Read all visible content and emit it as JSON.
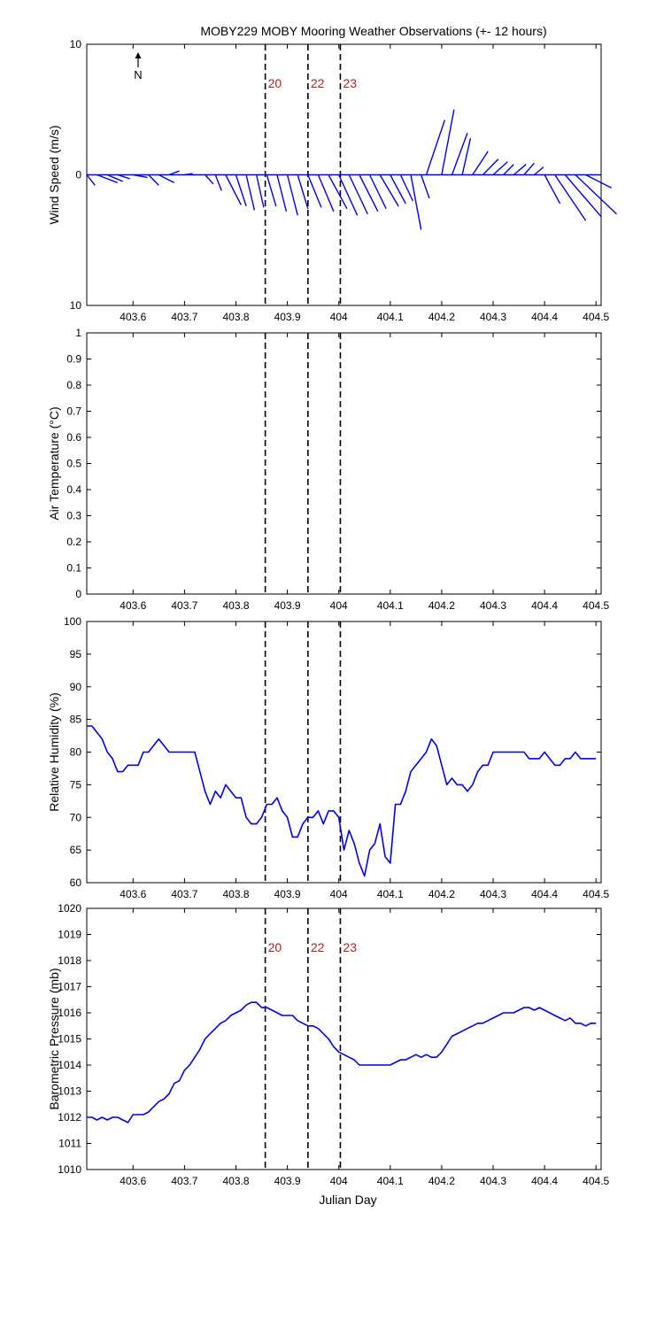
{
  "figure": {
    "title": "MOBY229 MOBY Mooring Weather Observations (+- 12 hours)",
    "xlabel": "Julian Day",
    "north_label": "N",
    "north_icon": "north-arrow-icon",
    "colors": {
      "series": "#0000ee",
      "marker_label": "#b22222",
      "axis": "#000000"
    }
  },
  "chart_data": [
    {
      "type": "line",
      "subtype": "wind-vector-stick",
      "ylabel": "Wind Speed (m/s)",
      "xlim": [
        403.51,
        404.51
      ],
      "ylim": [
        -10,
        10
      ],
      "yticks": [
        -10,
        0,
        10
      ],
      "ytick_labels": [
        "10",
        "0",
        "10"
      ],
      "xticks": [
        403.6,
        403.7,
        403.8,
        403.9,
        404,
        404.1,
        404.2,
        404.3,
        404.4,
        404.5
      ],
      "xtick_labels": [
        "403.6",
        "403.7",
        "403.8",
        "403.9",
        "404",
        "404.1",
        "404.2",
        "404.3",
        "404.4",
        "404.5"
      ],
      "markers": [
        {
          "x": 403.857,
          "label": "20"
        },
        {
          "x": 403.94,
          "label": "22"
        },
        {
          "x": 404.003,
          "label": "23"
        }
      ],
      "series": [
        {
          "vectors": [
            {
              "x": 403.51,
              "u": 0.8,
              "v": -0.8
            },
            {
              "x": 403.53,
              "u": 2.0,
              "v": -0.6
            },
            {
              "x": 403.55,
              "u": 1.5,
              "v": -0.5
            },
            {
              "x": 403.57,
              "u": 1.2,
              "v": -0.3
            },
            {
              "x": 403.6,
              "u": 1.4,
              "v": -0.2
            },
            {
              "x": 403.63,
              "u": 1.0,
              "v": -0.8
            },
            {
              "x": 403.65,
              "u": 1.5,
              "v": -0.6
            },
            {
              "x": 403.67,
              "u": 1.0,
              "v": 0.3
            },
            {
              "x": 403.7,
              "u": 0.8,
              "v": 0.1
            },
            {
              "x": 403.74,
              "u": 0.8,
              "v": -0.7
            },
            {
              "x": 403.76,
              "u": 0.6,
              "v": -1.2
            },
            {
              "x": 403.78,
              "u": 1.5,
              "v": -2.3
            },
            {
              "x": 403.8,
              "u": 1.0,
              "v": -2.4
            },
            {
              "x": 403.82,
              "u": 0.8,
              "v": -2.7
            },
            {
              "x": 403.84,
              "u": 0.7,
              "v": -2.5
            },
            {
              "x": 403.86,
              "u": 0.9,
              "v": -2.4
            },
            {
              "x": 403.88,
              "u": 0.9,
              "v": -2.8
            },
            {
              "x": 403.9,
              "u": 1.0,
              "v": -3.1
            },
            {
              "x": 403.92,
              "u": 1.0,
              "v": -2.6
            },
            {
              "x": 403.94,
              "u": 1.3,
              "v": -2.5
            },
            {
              "x": 403.96,
              "u": 1.5,
              "v": -2.8
            },
            {
              "x": 403.98,
              "u": 1.8,
              "v": -2.6
            },
            {
              "x": 404.0,
              "u": 1.8,
              "v": -3.1
            },
            {
              "x": 404.02,
              "u": 1.8,
              "v": -3.0
            },
            {
              "x": 404.04,
              "u": 1.8,
              "v": -2.8
            },
            {
              "x": 404.06,
              "u": 1.6,
              "v": -2.6
            },
            {
              "x": 404.08,
              "u": 1.8,
              "v": -2.4
            },
            {
              "x": 404.1,
              "u": 1.5,
              "v": -2.2
            },
            {
              "x": 404.12,
              "u": 1.2,
              "v": -2.0
            },
            {
              "x": 404.14,
              "u": 1.0,
              "v": -4.2
            },
            {
              "x": 404.16,
              "u": 0.8,
              "v": -1.8
            },
            {
              "x": 404.17,
              "u": 1.8,
              "v": 4.2
            },
            {
              "x": 404.2,
              "u": 1.2,
              "v": 5.0
            },
            {
              "x": 404.22,
              "u": 1.5,
              "v": 3.2
            },
            {
              "x": 404.24,
              "u": 0.8,
              "v": 2.8
            },
            {
              "x": 404.26,
              "u": 1.5,
              "v": 1.8
            },
            {
              "x": 404.28,
              "u": 1.5,
              "v": 1.2
            },
            {
              "x": 404.3,
              "u": 1.4,
              "v": 1.0
            },
            {
              "x": 404.32,
              "u": 1.0,
              "v": 0.8
            },
            {
              "x": 404.34,
              "u": 1.2,
              "v": 0.8
            },
            {
              "x": 404.36,
              "u": 1.0,
              "v": 0.9
            },
            {
              "x": 404.38,
              "u": 0.9,
              "v": 0.6
            },
            {
              "x": 404.4,
              "u": 1.5,
              "v": -2.2
            },
            {
              "x": 404.42,
              "u": 3.0,
              "v": -3.5
            },
            {
              "x": 404.44,
              "u": 3.5,
              "v": -3.2
            },
            {
              "x": 404.46,
              "u": 4.0,
              "v": -3.0
            },
            {
              "x": 404.48,
              "u": 2.5,
              "v": -1.0
            }
          ]
        }
      ]
    },
    {
      "type": "line",
      "ylabel": "Air Temperature (°C)",
      "xlim": [
        403.51,
        404.51
      ],
      "ylim": [
        0,
        1
      ],
      "yticks": [
        0,
        0.1,
        0.2,
        0.3,
        0.4,
        0.5,
        0.6,
        0.7,
        0.8,
        0.9,
        1
      ],
      "ytick_labels": [
        "0",
        "0.1",
        "0.2",
        "0.3",
        "0.4",
        "0.5",
        "0.6",
        "0.7",
        "0.8",
        "0.9",
        "1"
      ],
      "xticks": [
        403.6,
        403.7,
        403.8,
        403.9,
        404,
        404.1,
        404.2,
        404.3,
        404.4,
        404.5
      ],
      "xtick_labels": [
        "403.6",
        "403.7",
        "403.8",
        "403.9",
        "404",
        "404.1",
        "404.2",
        "404.3",
        "404.4",
        "404.5"
      ],
      "markers": [
        {
          "x": 403.857,
          "label": ""
        },
        {
          "x": 403.94,
          "label": ""
        },
        {
          "x": 404.003,
          "label": ""
        }
      ],
      "series": []
    },
    {
      "type": "line",
      "ylabel": "Relative Humidity (%)",
      "xlim": [
        403.51,
        404.51
      ],
      "ylim": [
        60,
        100
      ],
      "yticks": [
        60,
        65,
        70,
        75,
        80,
        85,
        90,
        95,
        100
      ],
      "ytick_labels": [
        "60",
        "65",
        "70",
        "75",
        "80",
        "85",
        "90",
        "95",
        "100"
      ],
      "xticks": [
        403.6,
        403.7,
        403.8,
        403.9,
        404,
        404.1,
        404.2,
        404.3,
        404.4,
        404.5
      ],
      "xtick_labels": [
        "403.6",
        "403.7",
        "403.8",
        "403.9",
        "404",
        "404.1",
        "404.2",
        "404.3",
        "404.4",
        "404.5"
      ],
      "markers": [
        {
          "x": 403.857,
          "label": ""
        },
        {
          "x": 403.94,
          "label": ""
        },
        {
          "x": 404.003,
          "label": ""
        }
      ],
      "series": [
        {
          "x": [
            403.51,
            403.52,
            403.53,
            403.54,
            403.55,
            403.56,
            403.57,
            403.58,
            403.59,
            403.6,
            403.61,
            403.62,
            403.63,
            403.64,
            403.65,
            403.66,
            403.67,
            403.68,
            403.69,
            403.7,
            403.71,
            403.72,
            403.73,
            403.74,
            403.75,
            403.76,
            403.77,
            403.78,
            403.79,
            403.8,
            403.81,
            403.82,
            403.83,
            403.84,
            403.85,
            403.86,
            403.87,
            403.88,
            403.89,
            403.9,
            403.91,
            403.92,
            403.93,
            403.94,
            403.95,
            403.96,
            403.97,
            403.98,
            403.99,
            404.0,
            404.01,
            404.02,
            404.03,
            404.04,
            404.05,
            404.06,
            404.07,
            404.08,
            404.09,
            404.1,
            404.11,
            404.12,
            404.13,
            404.14,
            404.15,
            404.16,
            404.17,
            404.18,
            404.19,
            404.2,
            404.21,
            404.22,
            404.23,
            404.24,
            404.25,
            404.26,
            404.27,
            404.28,
            404.29,
            404.3,
            404.31,
            404.32,
            404.33,
            404.34,
            404.35,
            404.36,
            404.37,
            404.38,
            404.39,
            404.4,
            404.41,
            404.42,
            404.43,
            404.44,
            404.45,
            404.46,
            404.47,
            404.48,
            404.49,
            404.5
          ],
          "values": [
            84,
            84,
            83,
            82,
            80,
            79,
            77,
            77,
            78,
            78,
            78,
            80,
            80,
            81,
            82,
            81,
            80,
            80,
            80,
            80,
            80,
            80,
            77,
            74,
            72,
            74,
            73,
            75,
            74,
            73,
            73,
            70,
            69,
            69,
            70,
            72,
            72,
            73,
            71,
            70,
            67,
            67,
            69,
            70,
            70,
            71,
            69,
            71,
            71,
            70,
            65,
            68,
            66,
            63,
            61,
            65,
            66,
            69,
            64,
            63,
            72,
            72,
            74,
            77,
            78,
            79,
            80,
            82,
            81,
            78,
            75,
            76,
            75,
            75,
            74,
            75,
            77,
            78,
            78,
            80,
            80,
            80,
            80,
            80,
            80,
            80,
            79,
            79,
            79,
            80,
            79,
            78,
            78,
            79,
            79,
            80,
            79,
            79,
            79,
            79
          ]
        }
      ]
    },
    {
      "type": "line",
      "ylabel": "Barometric Pressure (mb)",
      "xlim": [
        403.51,
        404.51
      ],
      "ylim": [
        1010,
        1020
      ],
      "yticks": [
        1010,
        1011,
        1012,
        1013,
        1014,
        1015,
        1016,
        1017,
        1018,
        1019,
        1020
      ],
      "ytick_labels": [
        "1010",
        "1011",
        "1012",
        "1013",
        "1014",
        "1015",
        "1016",
        "1017",
        "1018",
        "1019",
        "1020"
      ],
      "xticks": [
        403.6,
        403.7,
        403.8,
        403.9,
        404,
        404.1,
        404.2,
        404.3,
        404.4,
        404.5
      ],
      "xtick_labels": [
        "403.6",
        "403.7",
        "403.8",
        "403.9",
        "404",
        "404.1",
        "404.2",
        "404.3",
        "404.4",
        "404.5"
      ],
      "markers": [
        {
          "x": 403.857,
          "label": "20"
        },
        {
          "x": 403.94,
          "label": "22"
        },
        {
          "x": 404.003,
          "label": "23"
        }
      ],
      "series": [
        {
          "x": [
            403.51,
            403.52,
            403.53,
            403.54,
            403.55,
            403.56,
            403.57,
            403.58,
            403.59,
            403.6,
            403.61,
            403.62,
            403.63,
            403.64,
            403.65,
            403.66,
            403.67,
            403.68,
            403.69,
            403.7,
            403.71,
            403.72,
            403.73,
            403.74,
            403.75,
            403.76,
            403.77,
            403.78,
            403.79,
            403.8,
            403.81,
            403.82,
            403.83,
            403.84,
            403.85,
            403.86,
            403.87,
            403.88,
            403.89,
            403.9,
            403.91,
            403.92,
            403.93,
            403.94,
            403.95,
            403.96,
            403.97,
            403.98,
            403.99,
            404.0,
            404.01,
            404.02,
            404.03,
            404.04,
            404.05,
            404.06,
            404.07,
            404.08,
            404.09,
            404.1,
            404.11,
            404.12,
            404.13,
            404.14,
            404.15,
            404.16,
            404.17,
            404.18,
            404.19,
            404.2,
            404.21,
            404.22,
            404.23,
            404.24,
            404.25,
            404.26,
            404.27,
            404.28,
            404.29,
            404.3,
            404.31,
            404.32,
            404.33,
            404.34,
            404.35,
            404.36,
            404.37,
            404.38,
            404.39,
            404.4,
            404.41,
            404.42,
            404.43,
            404.44,
            404.45,
            404.46,
            404.47,
            404.48,
            404.49,
            404.5
          ],
          "values": [
            1012.0,
            1012.0,
            1011.9,
            1012.0,
            1011.9,
            1012.0,
            1012.0,
            1011.9,
            1011.8,
            1012.1,
            1012.1,
            1012.1,
            1012.2,
            1012.4,
            1012.6,
            1012.7,
            1012.9,
            1013.3,
            1013.4,
            1013.8,
            1014.0,
            1014.3,
            1014.6,
            1015.0,
            1015.2,
            1015.4,
            1015.6,
            1015.7,
            1015.9,
            1016.0,
            1016.1,
            1016.3,
            1016.4,
            1016.4,
            1016.2,
            1016.2,
            1016.1,
            1016.0,
            1015.9,
            1015.9,
            1015.9,
            1015.7,
            1015.6,
            1015.5,
            1015.5,
            1015.4,
            1015.2,
            1015.0,
            1014.7,
            1014.5,
            1014.4,
            1014.3,
            1014.2,
            1014.0,
            1014.0,
            1014.0,
            1014.0,
            1014.0,
            1014.0,
            1014.0,
            1014.1,
            1014.2,
            1014.2,
            1014.3,
            1014.4,
            1014.3,
            1014.4,
            1014.3,
            1014.3,
            1014.5,
            1014.8,
            1015.1,
            1015.2,
            1015.3,
            1015.4,
            1015.5,
            1015.6,
            1015.6,
            1015.7,
            1015.8,
            1015.9,
            1016.0,
            1016.0,
            1016.0,
            1016.1,
            1016.2,
            1016.2,
            1016.1,
            1016.2,
            1016.1,
            1016.0,
            1015.9,
            1015.8,
            1015.7,
            1015.8,
            1015.6,
            1015.6,
            1015.5,
            1015.6,
            1015.6
          ]
        }
      ]
    }
  ]
}
